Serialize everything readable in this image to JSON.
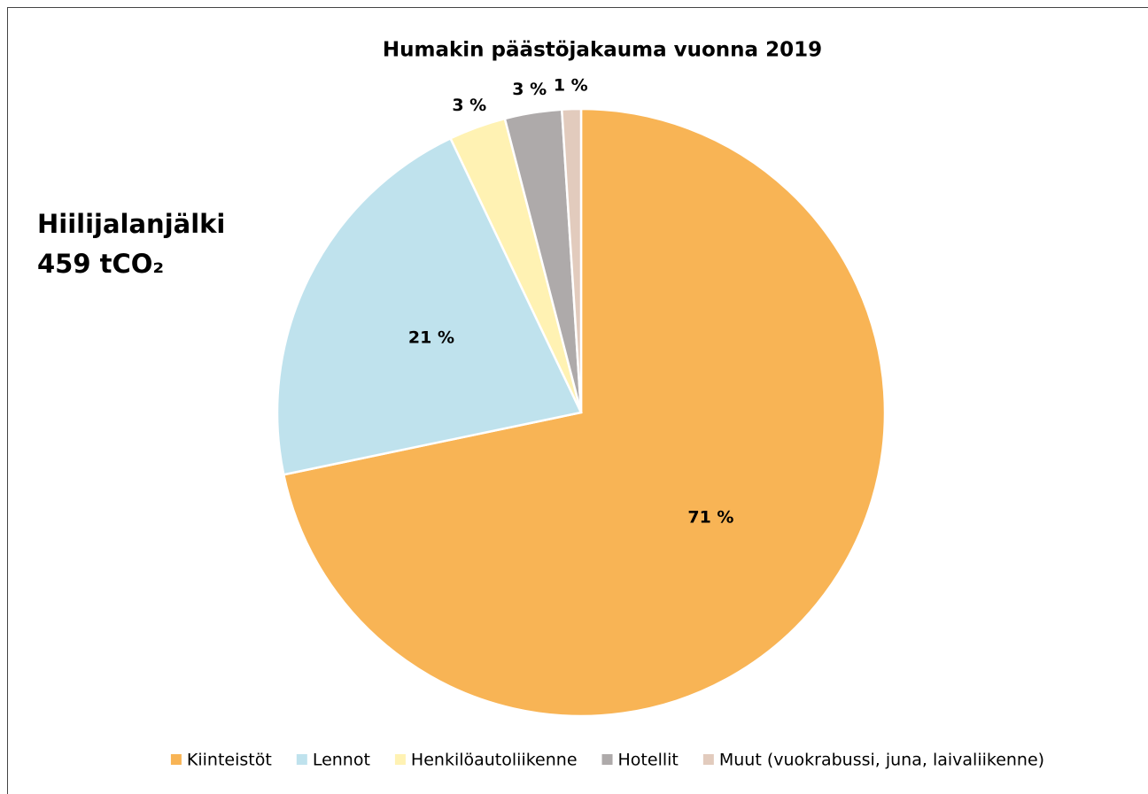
{
  "chart_data": {
    "type": "pie",
    "title": "Humakin päästöjakauma vuonna 2019",
    "annotations": [
      "Hiilijalanjälki",
      "459 tCO₂"
    ],
    "categories": [
      "Kiinteistöt",
      "Lennot",
      "Henkilöautoliikenne",
      "Hotellit",
      "Muut (vuokrabussi, juna, laivaliikenne)"
    ],
    "values": [
      71,
      21,
      3,
      3,
      1
    ],
    "value_labels": [
      "71 %",
      "21 %",
      "3 %",
      "3 %",
      "1 %"
    ],
    "colors": [
      "#f8b455",
      "#bfe2ed",
      "#fff2b3",
      "#aeaaaa",
      "#e2cbbd"
    ],
    "legend": "bottom"
  }
}
